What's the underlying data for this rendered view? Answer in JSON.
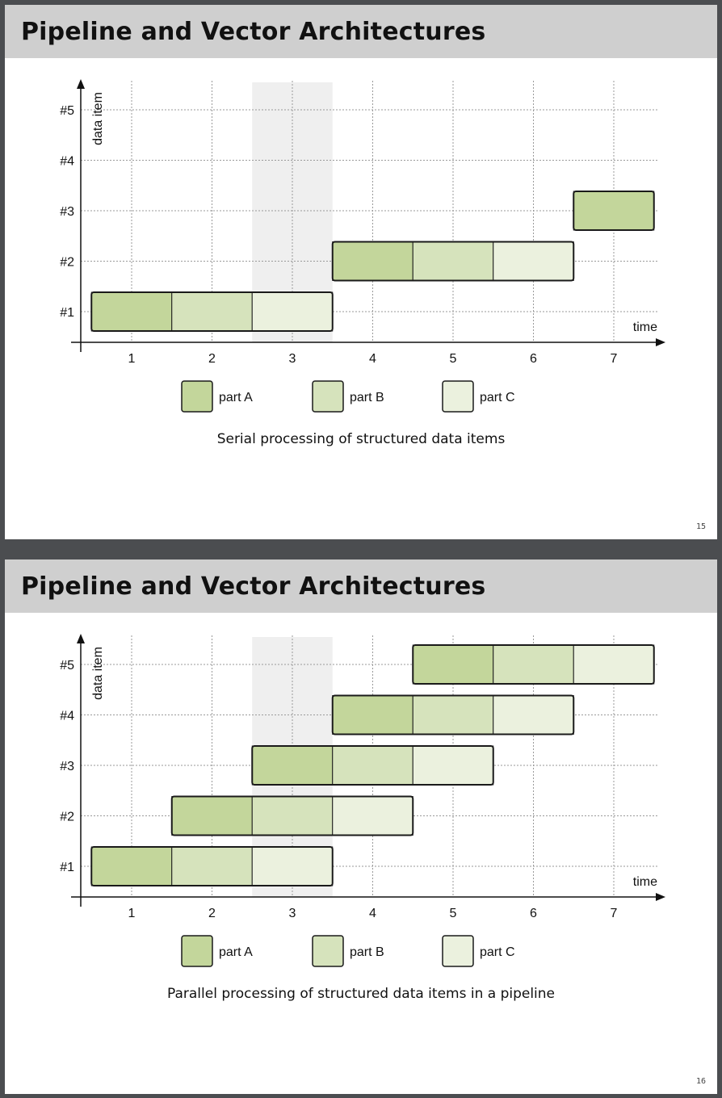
{
  "slides": [
    {
      "title": "Pipeline and Vector Architectures",
      "caption": "Serial processing of structured data items",
      "page_number": "15",
      "chart_data": {
        "type": "gantt",
        "x_axis_label": "time",
        "y_axis_label": "data item",
        "x_ticks": [
          "1",
          "2",
          "3",
          "4",
          "5",
          "6",
          "7"
        ],
        "y_ticks": [
          "#1",
          "#2",
          "#3",
          "#4",
          "#5"
        ],
        "highlighted_time": 3,
        "grid": true,
        "blocks": [
          {
            "item": 1,
            "time": 1,
            "part": "A"
          },
          {
            "item": 1,
            "time": 2,
            "part": "B"
          },
          {
            "item": 1,
            "time": 3,
            "part": "C"
          },
          {
            "item": 2,
            "time": 4,
            "part": "A"
          },
          {
            "item": 2,
            "time": 5,
            "part": "B"
          },
          {
            "item": 2,
            "time": 6,
            "part": "C"
          },
          {
            "item": 3,
            "time": 7,
            "part": "A"
          }
        ],
        "legend": [
          {
            "part": "A",
            "label": "part A",
            "color": "#c3d69b"
          },
          {
            "part": "B",
            "label": "part B",
            "color": "#d6e3bc"
          },
          {
            "part": "C",
            "label": "part C",
            "color": "#ebf1de"
          }
        ]
      }
    },
    {
      "title": "Pipeline and Vector Architectures",
      "caption": "Parallel processing of structured data items in a pipeline",
      "page_number": "16",
      "chart_data": {
        "type": "gantt",
        "x_axis_label": "time",
        "y_axis_label": "data item",
        "x_ticks": [
          "1",
          "2",
          "3",
          "4",
          "5",
          "6",
          "7"
        ],
        "y_ticks": [
          "#1",
          "#2",
          "#3",
          "#4",
          "#5"
        ],
        "highlighted_time": 3,
        "grid": true,
        "blocks": [
          {
            "item": 1,
            "time": 1,
            "part": "A"
          },
          {
            "item": 1,
            "time": 2,
            "part": "B"
          },
          {
            "item": 1,
            "time": 3,
            "part": "C"
          },
          {
            "item": 2,
            "time": 2,
            "part": "A"
          },
          {
            "item": 2,
            "time": 3,
            "part": "B"
          },
          {
            "item": 2,
            "time": 4,
            "part": "C"
          },
          {
            "item": 3,
            "time": 3,
            "part": "A"
          },
          {
            "item": 3,
            "time": 4,
            "part": "B"
          },
          {
            "item": 3,
            "time": 5,
            "part": "C"
          },
          {
            "item": 4,
            "time": 4,
            "part": "A"
          },
          {
            "item": 4,
            "time": 5,
            "part": "B"
          },
          {
            "item": 4,
            "time": 6,
            "part": "C"
          },
          {
            "item": 5,
            "time": 5,
            "part": "A"
          },
          {
            "item": 5,
            "time": 6,
            "part": "B"
          },
          {
            "item": 5,
            "time": 7,
            "part": "C"
          }
        ],
        "legend": [
          {
            "part": "A",
            "label": "part A",
            "color": "#c3d69b"
          },
          {
            "part": "B",
            "label": "part B",
            "color": "#d6e3bc"
          },
          {
            "part": "C",
            "label": "part C",
            "color": "#ebf1de"
          }
        ]
      }
    }
  ]
}
